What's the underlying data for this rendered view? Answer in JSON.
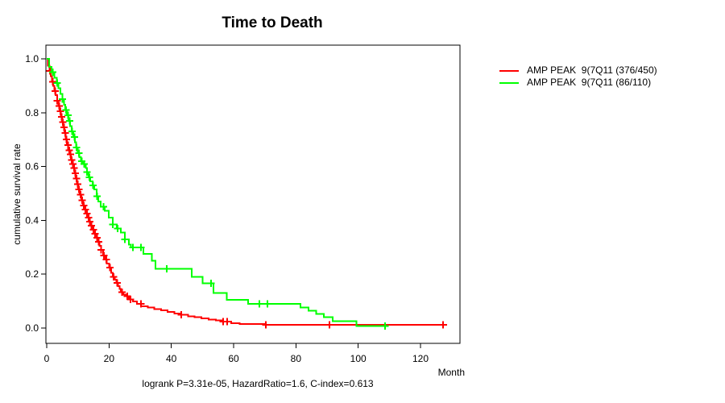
{
  "title": "Time to Death",
  "footer": "logrank P=3.31e-05, HazardRatio=1.6, C-index=0.613",
  "axes": {
    "x_label": "Month",
    "y_label": "cumulative survival rate"
  },
  "colors": {
    "series1": "#FF0000",
    "series2": "#00FF00",
    "axis": "#000000",
    "background": "#FFFFFF"
  },
  "legend": [
    {
      "label": "AMP PEAK  9(7Q11 (376/450)",
      "color": "#FF0000"
    },
    {
      "label": "AMP PEAK  9(7Q11 (86/110)",
      "color": "#00FF00"
    }
  ],
  "chart_data": {
    "type": "line",
    "subtype": "kaplan-meier-step",
    "title": "Time to Death",
    "xlabel": "Month",
    "ylabel": "cumulative survival rate",
    "xlim": [
      0,
      132
    ],
    "ylim": [
      0,
      1
    ],
    "x_ticks": [
      0,
      20,
      40,
      60,
      80,
      100,
      120
    ],
    "y_ticks": [
      0.0,
      0.2,
      0.4,
      0.6,
      0.8,
      1.0
    ],
    "grid": false,
    "legend_position": "right-outside",
    "footer": "logrank P=3.31e-05, HazardRatio=1.6, C-index=0.613",
    "series": [
      {
        "name": "AMP PEAK  9(7Q11 (376/450)",
        "color": "#FF0000",
        "n_events": "376/450",
        "steps": [
          [
            0,
            1.0
          ],
          [
            0.4,
            0.975
          ],
          [
            0.9,
            0.955
          ],
          [
            1.3,
            0.935
          ],
          [
            1.7,
            0.915
          ],
          [
            2.1,
            0.9
          ],
          [
            2.5,
            0.88
          ],
          [
            2.9,
            0.865
          ],
          [
            3.3,
            0.845
          ],
          [
            3.7,
            0.825
          ],
          [
            4.1,
            0.805
          ],
          [
            4.5,
            0.785
          ],
          [
            4.9,
            0.765
          ],
          [
            5.3,
            0.745
          ],
          [
            5.7,
            0.725
          ],
          [
            6.1,
            0.7
          ],
          [
            6.5,
            0.68
          ],
          [
            6.9,
            0.66
          ],
          [
            7.3,
            0.645
          ],
          [
            7.7,
            0.625
          ],
          [
            8.1,
            0.61
          ],
          [
            8.5,
            0.595
          ],
          [
            8.9,
            0.575
          ],
          [
            9.3,
            0.555
          ],
          [
            9.7,
            0.535
          ],
          [
            10.1,
            0.515
          ],
          [
            10.6,
            0.495
          ],
          [
            11.1,
            0.475
          ],
          [
            11.6,
            0.455
          ],
          [
            12.1,
            0.44
          ],
          [
            12.6,
            0.425
          ],
          [
            13.1,
            0.41
          ],
          [
            13.6,
            0.395
          ],
          [
            14.1,
            0.38
          ],
          [
            14.6,
            0.365
          ],
          [
            15.1,
            0.35
          ],
          [
            15.7,
            0.335
          ],
          [
            16.3,
            0.32
          ],
          [
            16.9,
            0.305
          ],
          [
            17.5,
            0.29
          ],
          [
            18.1,
            0.27
          ],
          [
            18.7,
            0.255
          ],
          [
            19.3,
            0.24
          ],
          [
            20.1,
            0.225
          ],
          [
            20.7,
            0.205
          ],
          [
            21.2,
            0.19
          ],
          [
            21.8,
            0.18
          ],
          [
            22.4,
            0.168
          ],
          [
            22.9,
            0.156
          ],
          [
            23.4,
            0.145
          ],
          [
            23.8,
            0.133
          ],
          [
            24.6,
            0.125
          ],
          [
            25.5,
            0.118
          ],
          [
            26.4,
            0.106
          ],
          [
            27.7,
            0.099
          ],
          [
            29,
            0.09
          ],
          [
            30.3,
            0.081
          ],
          [
            32.4,
            0.076
          ],
          [
            34.5,
            0.071
          ],
          [
            36.7,
            0.066
          ],
          [
            38.8,
            0.06
          ],
          [
            41,
            0.054
          ],
          [
            43.2,
            0.049
          ],
          [
            45.4,
            0.044
          ],
          [
            47.5,
            0.04
          ],
          [
            49.7,
            0.036
          ],
          [
            52,
            0.032
          ],
          [
            54.3,
            0.028
          ],
          [
            56.6,
            0.024
          ],
          [
            59.2,
            0.018
          ],
          [
            62,
            0.015
          ],
          [
            70,
            0.012
          ],
          [
            128.5,
            0.012
          ]
        ],
        "censor_months": [
          1.0,
          2.0,
          2.7,
          3.4,
          4.0,
          4.4,
          4.8,
          5.2,
          5.6,
          6.0,
          6.4,
          6.8,
          7.2,
          7.6,
          8.0,
          8.4,
          8.8,
          9.2,
          9.6,
          10.0,
          10.4,
          10.9,
          11.4,
          11.9,
          12.4,
          12.9,
          13.4,
          13.9,
          14.4,
          15.0,
          15.5,
          16.1,
          16.7,
          17.5,
          18.3,
          19.2,
          20.3,
          21.5,
          22.6,
          24.2,
          25.8,
          26.9,
          30.2,
          43.2,
          56.6,
          57.9,
          70.3,
          90.8,
          127.2
        ]
      },
      {
        "name": "AMP PEAK  9(7Q11 (86/110)",
        "color": "#00FF00",
        "n_events": "86/110",
        "steps": [
          [
            0,
            1.0
          ],
          [
            0.8,
            0.97
          ],
          [
            1.6,
            0.95
          ],
          [
            2.4,
            0.93
          ],
          [
            3.2,
            0.91
          ],
          [
            3.8,
            0.89
          ],
          [
            4.4,
            0.87
          ],
          [
            5.0,
            0.85
          ],
          [
            5.5,
            0.83
          ],
          [
            6.0,
            0.81
          ],
          [
            6.5,
            0.79
          ],
          [
            7.0,
            0.77
          ],
          [
            7.5,
            0.75
          ],
          [
            8.0,
            0.73
          ],
          [
            8.5,
            0.71
          ],
          [
            9.0,
            0.69
          ],
          [
            9.5,
            0.67
          ],
          [
            10.0,
            0.65
          ],
          [
            10.5,
            0.635
          ],
          [
            11.0,
            0.62
          ],
          [
            11.8,
            0.61
          ],
          [
            12.5,
            0.595
          ],
          [
            12.9,
            0.58
          ],
          [
            13.4,
            0.56
          ],
          [
            14.0,
            0.545
          ],
          [
            14.7,
            0.53
          ],
          [
            15.3,
            0.515
          ],
          [
            16.0,
            0.49
          ],
          [
            16.6,
            0.47
          ],
          [
            17.3,
            0.45
          ],
          [
            18.6,
            0.435
          ],
          [
            19.9,
            0.41
          ],
          [
            21.2,
            0.385
          ],
          [
            22.5,
            0.37
          ],
          [
            23.8,
            0.355
          ],
          [
            25.1,
            0.33
          ],
          [
            26.4,
            0.31
          ],
          [
            27.0,
            0.3
          ],
          [
            31.0,
            0.275
          ],
          [
            33.8,
            0.25
          ],
          [
            34.9,
            0.22
          ],
          [
            46.5,
            0.19
          ],
          [
            50.1,
            0.166
          ],
          [
            53.5,
            0.13
          ],
          [
            57.8,
            0.105
          ],
          [
            64.6,
            0.09
          ],
          [
            81.5,
            0.076
          ],
          [
            84.0,
            0.064
          ],
          [
            86.5,
            0.052
          ],
          [
            89.0,
            0.04
          ],
          [
            91.8,
            0.026
          ],
          [
            99.5,
            0.008
          ],
          [
            108.6,
            0.008
          ]
        ],
        "censor_months": [
          2.0,
          3.4,
          5.0,
          6.2,
          6.9,
          7.4,
          8.1,
          8.9,
          9.6,
          10.4,
          11.2,
          12.0,
          12.9,
          13.7,
          14.9,
          16.2,
          18.2,
          21.2,
          22.7,
          25.1,
          27.7,
          30.3,
          38.5,
          52.7,
          68.3,
          70.8,
          108.6
        ]
      }
    ]
  }
}
